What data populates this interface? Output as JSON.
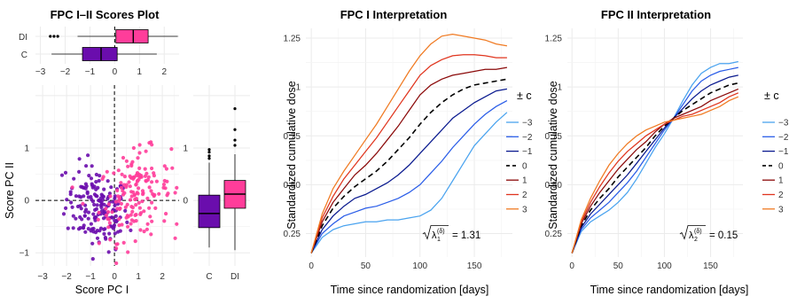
{
  "colors": {
    "C": "#6a0dad",
    "DI": "#ff3d9a",
    "legend": [
      "#4aa3ef",
      "#2a5de8",
      "#0a1a8f",
      "#000000",
      "#8b0a0a",
      "#e0351e",
      "#f07a22"
    ]
  },
  "chart_data": [
    {
      "type": "boxplot",
      "title": "FPC I–II Scores Plot",
      "orientation": "horizontal",
      "categories": [
        "DI",
        "C"
      ],
      "xticks": [
        -3,
        -2,
        -1,
        0,
        1,
        2
      ],
      "xlim": [
        -3.2,
        2.6
      ],
      "boxes": [
        {
          "group": "DI",
          "min": -1.5,
          "q1": 0.05,
          "median": 0.75,
          "q3": 1.35,
          "max": 2.55,
          "outliers": [
            -2.6,
            -2.45,
            -2.3
          ]
        },
        {
          "group": "C",
          "min": -2.55,
          "q1": -1.3,
          "median": -0.55,
          "q3": 0.1,
          "max": 1.7,
          "outliers": []
        }
      ]
    },
    {
      "type": "scatter",
      "xlabel": "Score PC I",
      "ylabel": "Score PC II",
      "xticks": [
        -3,
        -2,
        -1,
        0,
        1,
        2
      ],
      "yticks": [
        -1,
        0,
        1
      ],
      "xlim": [
        -3.3,
        2.7
      ],
      "ylim": [
        -1.25,
        2.2
      ],
      "reference_lines": {
        "x": 0,
        "y": 0
      },
      "series": [
        {
          "group": "C",
          "n": 170,
          "x_mean": -0.7,
          "x_sd": 0.65,
          "y_mean": -0.15,
          "y_sd": 0.38
        },
        {
          "group": "DI",
          "n": 170,
          "x_mean": 0.85,
          "x_sd": 0.75,
          "y_mean": 0.1,
          "y_sd": 0.4
        }
      ]
    },
    {
      "type": "boxplot",
      "orientation": "vertical",
      "categories": [
        "C",
        "DI"
      ],
      "yticks": [
        0,
        1
      ],
      "ylim": [
        -1.25,
        2.2
      ],
      "boxes": [
        {
          "group": "C",
          "min": -0.9,
          "q1": -0.52,
          "median": -0.25,
          "q3": 0.1,
          "max": 0.72,
          "outliers": [
            0.8,
            0.85,
            0.92,
            0.97
          ]
        },
        {
          "group": "DI",
          "min": -0.95,
          "q1": -0.15,
          "median": 0.12,
          "q3": 0.38,
          "max": 0.88,
          "outliers": [
            1.05,
            1.15,
            1.35,
            1.75
          ]
        }
      ]
    },
    {
      "type": "line",
      "title": "FPC I Interpretation",
      "xlabel": "Time since randomization [days]",
      "ylabel": "Standardized cumulative dose",
      "xticks": [
        0,
        50,
        100,
        150
      ],
      "yticks": [
        0.25,
        0.5,
        0.75,
        1.0,
        1.25
      ],
      "xlim": [
        -5,
        185
      ],
      "ylim": [
        0.13,
        1.3
      ],
      "x": [
        0,
        10,
        20,
        30,
        40,
        50,
        60,
        70,
        80,
        90,
        100,
        110,
        120,
        130,
        140,
        150,
        160,
        170,
        180
      ],
      "legend_title": "± c",
      "annotation": {
        "label": "= 1.31",
        "sqrt_text": "λ",
        "sub": "1",
        "sup": "(δ)"
      },
      "series": [
        {
          "name": "−3",
          "dash": "solid",
          "values": [
            0.15,
            0.23,
            0.27,
            0.29,
            0.3,
            0.31,
            0.31,
            0.32,
            0.32,
            0.33,
            0.34,
            0.37,
            0.43,
            0.52,
            0.61,
            0.7,
            0.76,
            0.82,
            0.87
          ]
        },
        {
          "name": "−2",
          "dash": "solid",
          "values": [
            0.15,
            0.25,
            0.3,
            0.34,
            0.36,
            0.38,
            0.39,
            0.41,
            0.43,
            0.46,
            0.5,
            0.56,
            0.62,
            0.69,
            0.75,
            0.81,
            0.86,
            0.9,
            0.93
          ]
        },
        {
          "name": "−1",
          "dash": "solid",
          "values": [
            0.15,
            0.27,
            0.34,
            0.39,
            0.43,
            0.45,
            0.48,
            0.51,
            0.55,
            0.6,
            0.66,
            0.72,
            0.78,
            0.84,
            0.88,
            0.92,
            0.95,
            0.98,
            0.99
          ]
        },
        {
          "name": "0",
          "dash": "dashed",
          "values": [
            0.15,
            0.29,
            0.38,
            0.44,
            0.49,
            0.53,
            0.57,
            0.62,
            0.68,
            0.74,
            0.81,
            0.87,
            0.92,
            0.96,
            0.99,
            1.01,
            1.02,
            1.03,
            1.04
          ]
        },
        {
          "name": "1",
          "dash": "solid",
          "values": [
            0.15,
            0.31,
            0.41,
            0.48,
            0.55,
            0.6,
            0.66,
            0.73,
            0.8,
            0.88,
            0.96,
            1.01,
            1.04,
            1.06,
            1.07,
            1.08,
            1.09,
            1.09,
            1.1
          ]
        },
        {
          "name": "2",
          "dash": "solid",
          "values": [
            0.15,
            0.33,
            0.44,
            0.53,
            0.6,
            0.67,
            0.74,
            0.82,
            0.9,
            0.98,
            1.06,
            1.11,
            1.14,
            1.16,
            1.165,
            1.165,
            1.16,
            1.15,
            1.15
          ]
        },
        {
          "name": "3",
          "dash": "solid",
          "values": [
            0.15,
            0.35,
            0.48,
            0.57,
            0.65,
            0.73,
            0.81,
            0.9,
            0.99,
            1.08,
            1.16,
            1.22,
            1.26,
            1.27,
            1.26,
            1.25,
            1.24,
            1.22,
            1.21
          ]
        }
      ]
    },
    {
      "type": "line",
      "title": "FPC II Interpretation",
      "xlabel": "Time since randomization [days]",
      "ylabel": "Standardized cumulative dose",
      "xticks": [
        0,
        50,
        100,
        150
      ],
      "yticks": [
        0.25,
        0.5,
        0.75,
        1.0,
        1.25
      ],
      "xlim": [
        -5,
        185
      ],
      "ylim": [
        0.13,
        1.3
      ],
      "x": [
        0,
        10,
        20,
        30,
        40,
        50,
        60,
        70,
        80,
        90,
        100,
        110,
        120,
        130,
        140,
        150,
        160,
        170,
        180
      ],
      "legend_title": "± c",
      "annotation": {
        "label": "= 0.15",
        "sqrt_text": "λ",
        "sub": "2",
        "sup": "(δ)"
      },
      "series": [
        {
          "name": "−3",
          "dash": "solid",
          "values": [
            0.15,
            0.26,
            0.31,
            0.34,
            0.37,
            0.41,
            0.46,
            0.53,
            0.61,
            0.69,
            0.76,
            0.84,
            0.93,
            1.01,
            1.07,
            1.1,
            1.12,
            1.12,
            1.13
          ]
        },
        {
          "name": "−2",
          "dash": "solid",
          "values": [
            0.15,
            0.27,
            0.33,
            0.37,
            0.41,
            0.46,
            0.51,
            0.57,
            0.64,
            0.71,
            0.78,
            0.84,
            0.91,
            0.98,
            1.03,
            1.06,
            1.08,
            1.09,
            1.1
          ]
        },
        {
          "name": "−1",
          "dash": "solid",
          "values": [
            0.15,
            0.28,
            0.35,
            0.4,
            0.45,
            0.5,
            0.55,
            0.61,
            0.67,
            0.73,
            0.79,
            0.84,
            0.89,
            0.94,
            0.98,
            1.01,
            1.03,
            1.05,
            1.06
          ]
        },
        {
          "name": "0",
          "dash": "dashed",
          "values": [
            0.15,
            0.29,
            0.37,
            0.43,
            0.48,
            0.54,
            0.59,
            0.64,
            0.69,
            0.75,
            0.8,
            0.84,
            0.88,
            0.91,
            0.94,
            0.97,
            0.99,
            1.01,
            1.02
          ]
        },
        {
          "name": "1",
          "dash": "solid",
          "values": [
            0.15,
            0.3,
            0.39,
            0.46,
            0.52,
            0.58,
            0.63,
            0.68,
            0.72,
            0.77,
            0.81,
            0.84,
            0.86,
            0.88,
            0.9,
            0.93,
            0.95,
            0.97,
            0.99
          ]
        },
        {
          "name": "2",
          "dash": "solid",
          "values": [
            0.15,
            0.31,
            0.41,
            0.49,
            0.56,
            0.62,
            0.67,
            0.71,
            0.75,
            0.78,
            0.81,
            0.83,
            0.85,
            0.86,
            0.88,
            0.9,
            0.92,
            0.95,
            0.97
          ]
        },
        {
          "name": "3",
          "dash": "solid",
          "values": [
            0.15,
            0.32,
            0.43,
            0.52,
            0.6,
            0.66,
            0.71,
            0.75,
            0.78,
            0.8,
            0.82,
            0.83,
            0.84,
            0.85,
            0.86,
            0.88,
            0.9,
            0.93,
            0.95
          ]
        }
      ]
    }
  ]
}
